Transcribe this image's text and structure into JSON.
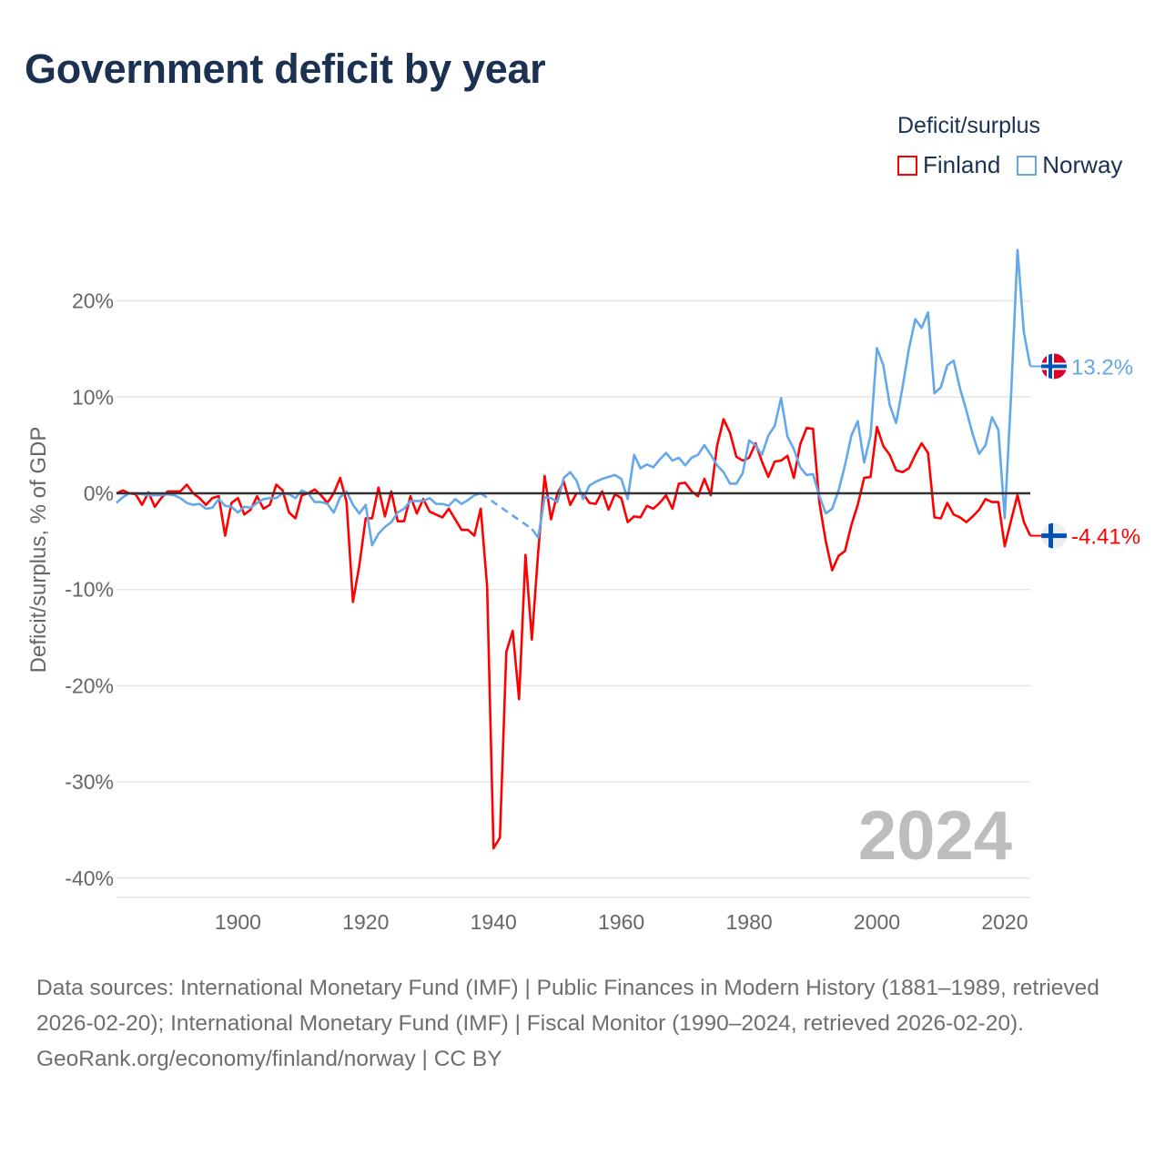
{
  "title": "Government deficit by year",
  "legend": {
    "title": "Deficit/surplus",
    "items": [
      {
        "label": "Finland",
        "color": "#ff0000"
      },
      {
        "label": "Norway",
        "color": "#62a8ea"
      }
    ]
  },
  "footer": {
    "sources": "Data sources: International Monetary Fund (IMF) | Public Finances in Modern History (1881–1989, retrieved 2026-02-20); International Monetary Fund (IMF) | Fiscal Monitor (1990–2024, retrieved 2026-02-20).",
    "credit": "GeoRank.org/economy/finland/norway | CC BY"
  },
  "chart_data": {
    "type": "line",
    "title": "Government deficit by year",
    "ylabel": "Deficit/surplus, % of GDP",
    "xlabel": "",
    "xlim": [
      1881,
      2024
    ],
    "ylim": [
      -42,
      27
    ],
    "yticks": [
      20,
      10,
      0,
      -10,
      -20,
      -30,
      -40
    ],
    "ytick_labels": [
      "20%",
      "10%",
      "0%",
      "-10%",
      "-20%",
      "-30%",
      "-40%"
    ],
    "xticks": [
      1900,
      1920,
      1940,
      1960,
      1980,
      2000,
      2020
    ],
    "xtick_labels": [
      "1900",
      "1920",
      "1940",
      "1960",
      "1980",
      "2000",
      "2020"
    ],
    "current_year_label": "2024",
    "x_start": 1881,
    "series": [
      {
        "name": "Finland",
        "color": "#ff0000",
        "end_label": "-4.41%",
        "values": [
          0.0,
          0.3,
          0,
          -0.1,
          -1.2,
          0.1,
          -1.4,
          -0.5,
          0.2,
          0.2,
          0.2,
          0.9,
          0,
          -0.5,
          -1.2,
          -0.5,
          -0.3,
          -4.4,
          -1,
          -0.5,
          -2.2,
          -1.7,
          -0.3,
          -1.6,
          -1.2,
          0.9,
          0.3,
          -2,
          -2.6,
          -0.2,
          0,
          0.4,
          -0.2,
          -1,
          0,
          1.6,
          -0.9,
          -11.3,
          -7.5,
          -2.6,
          -2.6,
          0.6,
          -2.4,
          0.2,
          -2.9,
          -2.9,
          -0.3,
          -2.1,
          -0.6,
          -1.9,
          -2.2,
          -2.5,
          -1.6,
          -2.7,
          -3.8,
          -3.8,
          -4.4,
          -1.6,
          -9.7,
          -36.9,
          -35.8,
          -16.5,
          -14.3,
          -21.4,
          -6.4,
          -15.2,
          -6,
          1.8,
          -2.7,
          0,
          1.2,
          -1.2,
          0,
          0,
          -1,
          -1.1,
          0.2,
          -1.7,
          -0.1,
          -0.5,
          -3,
          -2.4,
          -2.5,
          -1.3,
          -1.6,
          -1,
          -0.2,
          -1.6,
          1,
          1.1,
          0.2,
          -0.3,
          1.5,
          -0.2,
          5,
          7.7,
          6.3,
          3.8,
          3.4,
          3.7,
          5.2,
          3.3,
          1.7,
          3.3,
          3.4,
          3.9,
          1.6,
          5.1,
          6.8,
          6.7,
          -1,
          -5,
          -8,
          -6.5,
          -6,
          -3.3,
          -1.2,
          1.6,
          1.7,
          6.9,
          4.9,
          4,
          2.4,
          2.2,
          2.6,
          4,
          5.2,
          4.2,
          -2.5,
          -2.6,
          -1,
          -2.2,
          -2.5,
          -3,
          -2.4,
          -1.7,
          -0.6,
          -0.9,
          -0.9,
          -5.5,
          -2.8,
          -0.2,
          -3,
          -4.41
        ]
      },
      {
        "name": "Norway",
        "color": "#62a8ea",
        "end_label": "13.2%",
        "values": [
          -1,
          -0.4,
          0,
          0,
          -0.1,
          -0.2,
          -0.2,
          -0.2,
          -0.1,
          -0.2,
          -0.5,
          -1,
          -1.2,
          -1.1,
          -1.6,
          -1.5,
          -0.6,
          -1.3,
          -1.4,
          -2,
          -1.4,
          -1.5,
          -1,
          -0.6,
          -0.5,
          -0.5,
          0,
          -0.1,
          -0.5,
          0.3,
          0,
          -0.9,
          -0.9,
          -1.1,
          -2,
          -0.4,
          0.2,
          -1.2,
          -2.1,
          -1.2,
          -5.4,
          -4.2,
          -3.5,
          -3,
          -2,
          -1.6,
          -0.8,
          -0.8,
          -0.8,
          -0.5,
          -1.1,
          -1.1,
          -1.3,
          -0.6,
          -1.1,
          -0.7,
          -0.2,
          0,
          null,
          null,
          null,
          null,
          null,
          null,
          null,
          -3.7,
          -4.6,
          -0.4,
          -0.5,
          -0.9,
          1.6,
          2.2,
          1.3,
          -0.6,
          0.8,
          1.2,
          1.5,
          1.7,
          1.9,
          1.5,
          -0.6,
          4,
          2.6,
          3,
          2.7,
          3.5,
          4.2,
          3.4,
          3.7,
          2.9,
          3.7,
          4,
          5,
          4,
          2.9,
          2.2,
          1,
          1,
          2.1,
          5.5,
          5,
          4,
          6,
          7,
          9.9,
          5.9,
          4.6,
          2.7,
          1.9,
          2,
          -0.3,
          -2.1,
          -1.6,
          0.3,
          2.9,
          6,
          7.5,
          3.2,
          6,
          15.1,
          13.3,
          9.2,
          7.3,
          11,
          15,
          18.1,
          17.2,
          18.8,
          10.4,
          11,
          13.3,
          13.8,
          10.9,
          8.6,
          6.1,
          4.1,
          5,
          7.9,
          6.6,
          -2.6,
          10.3,
          25.3,
          16.7,
          13.2
        ]
      }
    ]
  }
}
